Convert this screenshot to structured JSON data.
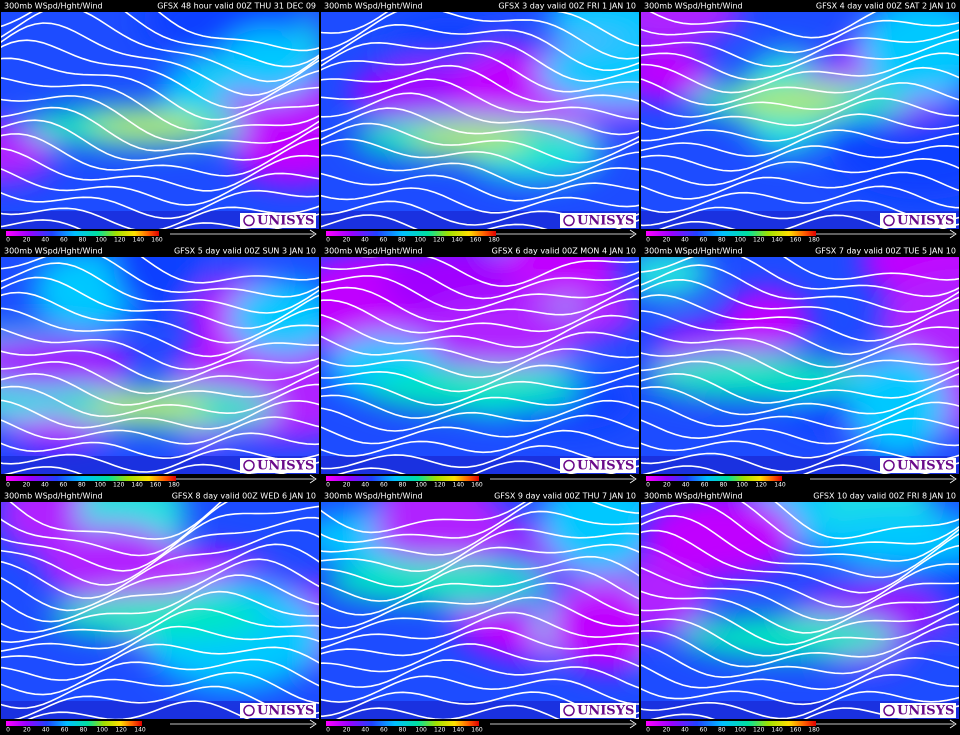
{
  "panels": [
    {
      "title": "300mb WSpd/Hght/Wind",
      "valid": "GFSX 48 hour valid 00Z THU 31 DEC 09",
      "logo": "UNISYS",
      "scale": [
        0,
        20,
        40,
        60,
        80,
        100,
        120,
        140,
        160
      ]
    },
    {
      "title": "300mb WSpd/Hght/Wind",
      "valid": "GFSX 3 day valid 00Z FRI 1 JAN 10",
      "logo": "UNISYS",
      "scale": [
        0,
        20,
        40,
        60,
        80,
        100,
        120,
        140,
        160,
        180
      ]
    },
    {
      "title": "300mb WSpd/Hght/Wind",
      "valid": "GFSX 4 day valid 00Z SAT 2 JAN 10",
      "logo": "UNISYS",
      "scale": [
        0,
        20,
        40,
        60,
        80,
        100,
        120,
        140,
        160,
        180
      ]
    },
    {
      "title": "300mb WSpd/Hght/Wind",
      "valid": "GFSX 5 day valid 00Z SUN 3 JAN 10",
      "logo": "UNISYS",
      "scale": [
        0,
        20,
        40,
        60,
        80,
        100,
        120,
        140,
        160,
        180
      ]
    },
    {
      "title": "300mb WSpd/Hght/Wind",
      "valid": "GFSX 6 day valid 00Z MON 4 JAN 10",
      "logo": "UNISYS",
      "scale": [
        0,
        20,
        40,
        60,
        80,
        100,
        120,
        140,
        160
      ]
    },
    {
      "title": "300mb WSpd/Hght/Wind",
      "valid": "GFSX 7 day valid 00Z TUE 5 JAN 10",
      "logo": "UNISYS",
      "scale": [
        0,
        20,
        40,
        60,
        80,
        100,
        120,
        140
      ]
    },
    {
      "title": "300mb WSpd/Hght/Wind",
      "valid": "GFSX 8 day valid 00Z WED 6 JAN 10",
      "logo": "UNISYS",
      "scale": [
        0,
        20,
        40,
        60,
        80,
        100,
        120,
        140
      ]
    },
    {
      "title": "300mb WSpd/Hght/Wind",
      "valid": "GFSX 9 day valid 00Z THU 7 JAN 10",
      "logo": "UNISYS",
      "scale": [
        0,
        20,
        40,
        60,
        80,
        100,
        120,
        140,
        160
      ]
    },
    {
      "title": "300mb WSpd/Hght/Wind",
      "valid": "GFSX 10 day valid 00Z FRI 8 JAN 10",
      "logo": "UNISYS",
      "scale": [
        0,
        20,
        40,
        60,
        80,
        100,
        120,
        140,
        160,
        180
      ]
    }
  ]
}
